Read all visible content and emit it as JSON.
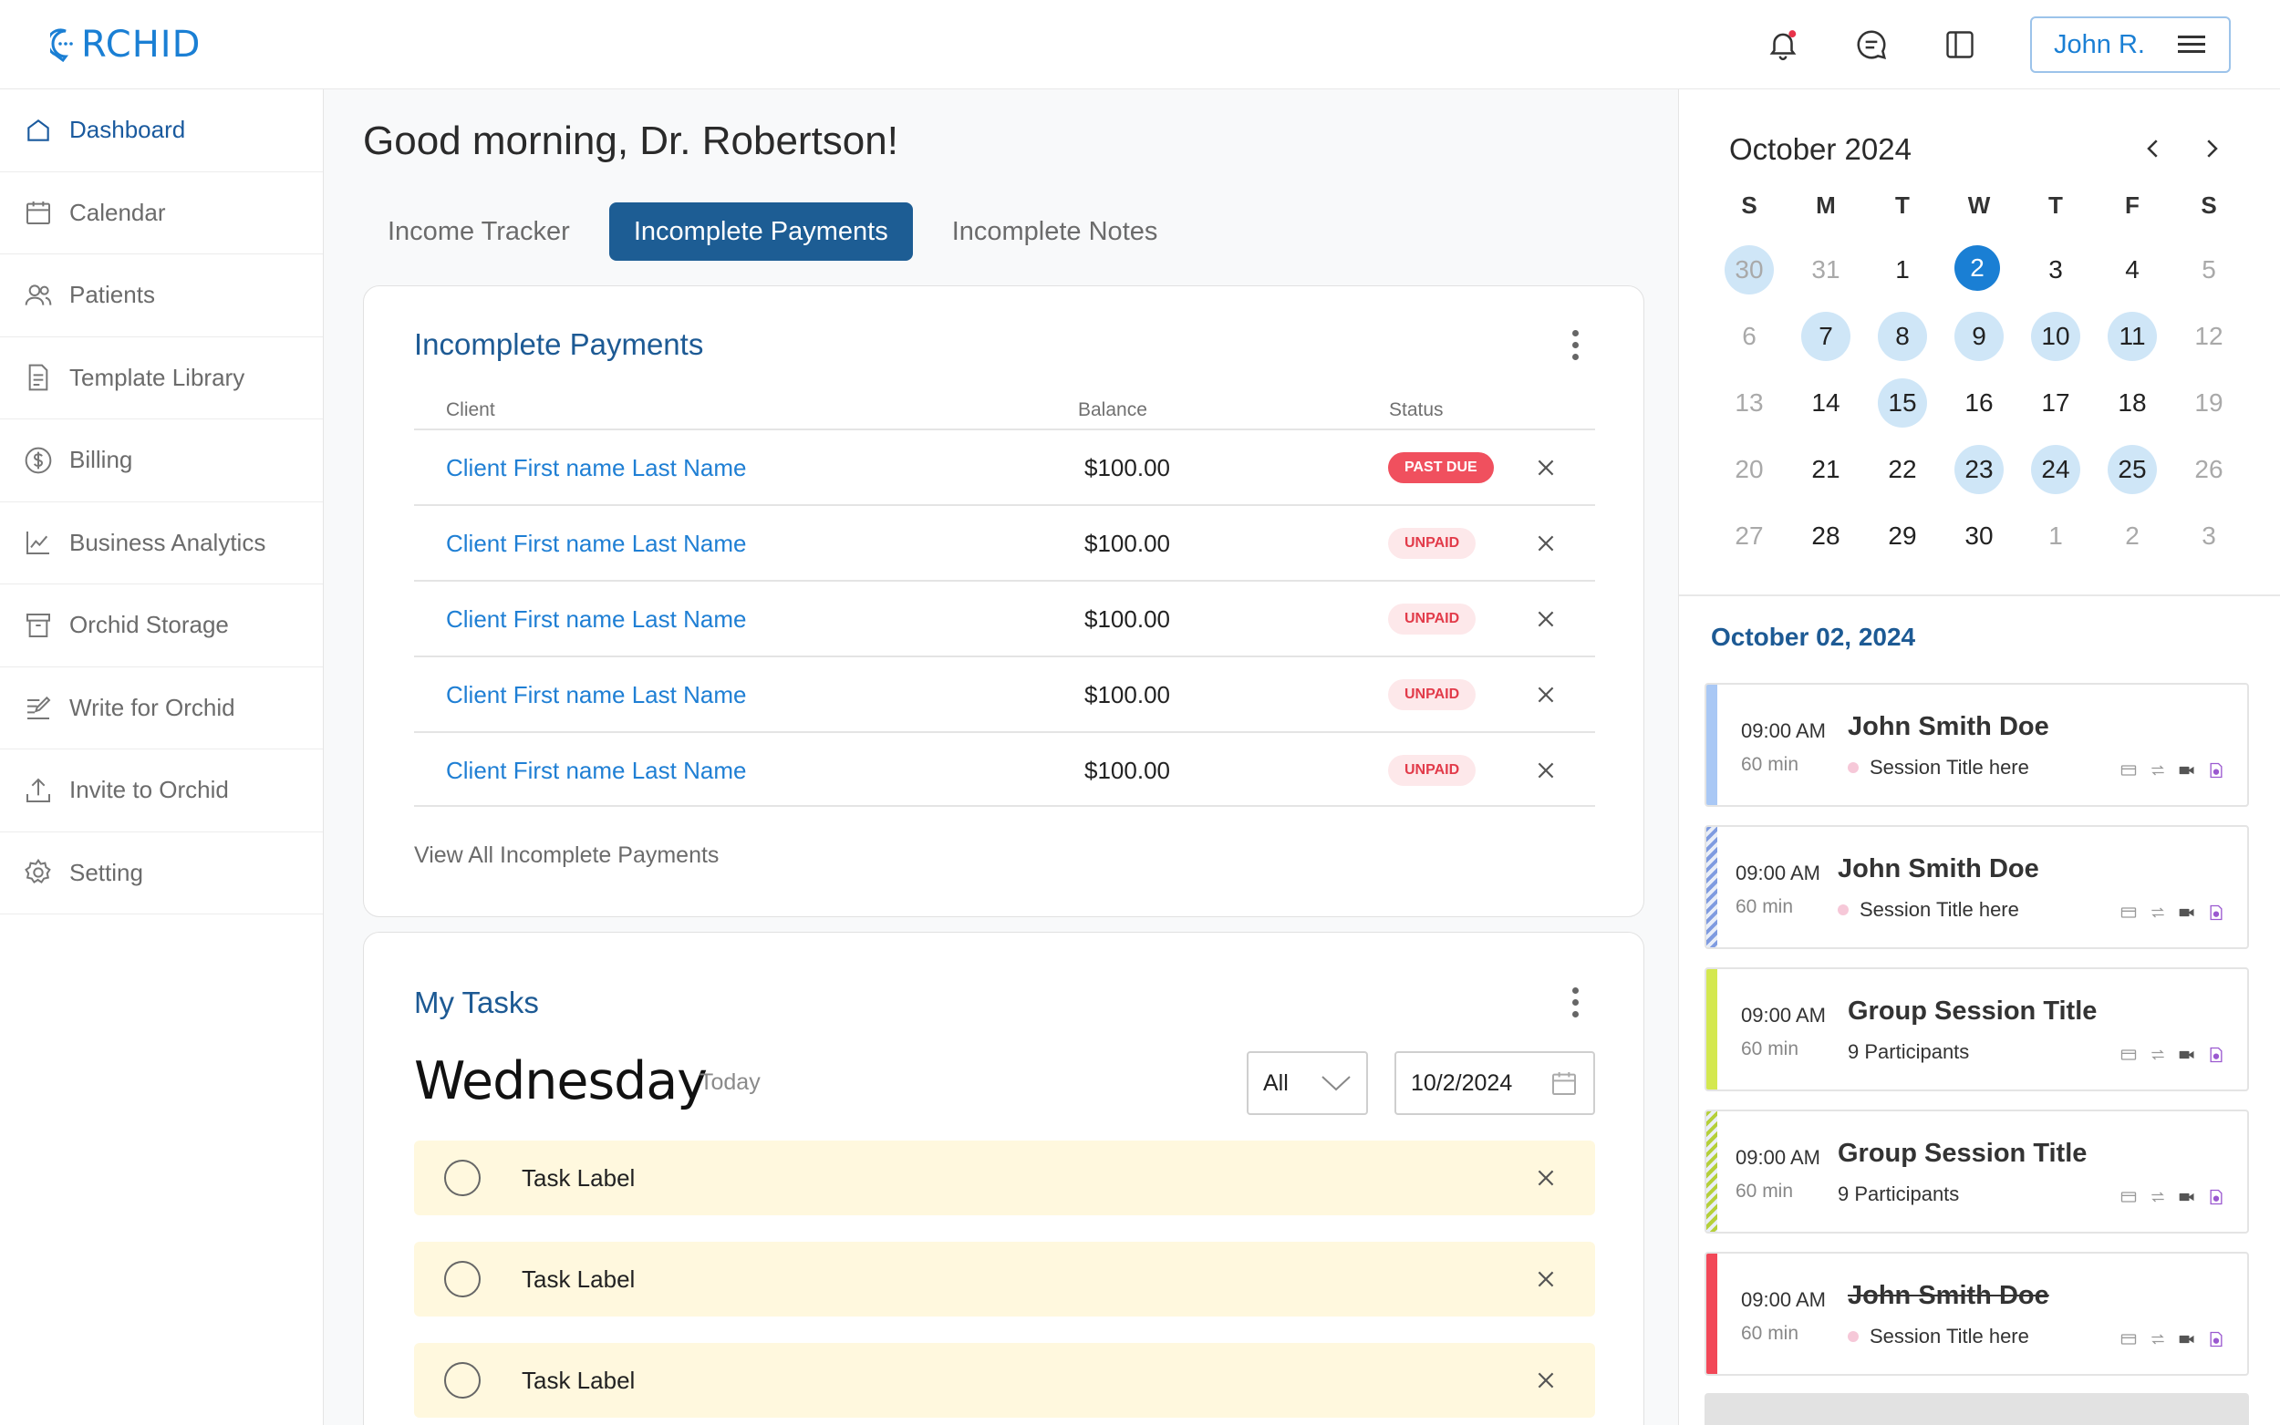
{
  "app": {
    "logo_text": "RCHID"
  },
  "header": {
    "user_label": "John R."
  },
  "sidebar": {
    "items": [
      {
        "label": "Dashboard",
        "icon": "home-icon"
      },
      {
        "label": "Calendar",
        "icon": "calendar-icon"
      },
      {
        "label": "Patients",
        "icon": "users-icon"
      },
      {
        "label": "Template Library",
        "icon": "document-icon"
      },
      {
        "label": "Billing",
        "icon": "dollar-icon"
      },
      {
        "label": "Business Analytics",
        "icon": "chart-icon"
      },
      {
        "label": "Orchid Storage",
        "icon": "archive-icon"
      },
      {
        "label": "Write for Orchid",
        "icon": "edit-icon"
      },
      {
        "label": "Invite to Orchid",
        "icon": "upload-icon"
      },
      {
        "label": "Setting",
        "icon": "gear-icon"
      }
    ]
  },
  "main": {
    "greeting": "Good morning, Dr. Robertson!",
    "tabs": [
      {
        "label": "Income Tracker"
      },
      {
        "label": "Incomplete Payments"
      },
      {
        "label": "Incomplete Notes"
      }
    ],
    "payments": {
      "title": "Incomplete Payments",
      "columns": [
        "Client",
        "Balance",
        "Status"
      ],
      "rows": [
        {
          "client": "Client First name Last Name",
          "balance": "$100.00",
          "status": "PAST DUE"
        },
        {
          "client": "Client First name Last Name",
          "balance": "$100.00",
          "status": "UNPAID"
        },
        {
          "client": "Client First name Last Name",
          "balance": "$100.00",
          "status": "UNPAID"
        },
        {
          "client": "Client First name Last Name",
          "balance": "$100.00",
          "status": "UNPAID"
        },
        {
          "client": "Client First name Last Name",
          "balance": "$100.00",
          "status": "UNPAID"
        }
      ],
      "view_all": "View All Incomplete Payments"
    },
    "tasks": {
      "title": "My Tasks",
      "weekday": "Wednesday",
      "today": "Today",
      "filter_value": "All",
      "date_value": "10/2/2024",
      "items": [
        {
          "label": "Task Label"
        },
        {
          "label": "Task Label"
        },
        {
          "label": "Task Label"
        }
      ]
    }
  },
  "calendar": {
    "month_label": "October 2024",
    "weekdays": [
      "S",
      "M",
      "T",
      "W",
      "T",
      "F",
      "S"
    ],
    "weeks": [
      [
        "30",
        "31",
        "1",
        "2",
        "3",
        "4",
        "5"
      ],
      [
        "6",
        "7",
        "8",
        "9",
        "10",
        "11",
        "12"
      ],
      [
        "13",
        "14",
        "15",
        "16",
        "17",
        "18",
        "19"
      ],
      [
        "20",
        "21",
        "22",
        "23",
        "24",
        "25",
        "26"
      ],
      [
        "27",
        "28",
        "29",
        "30",
        "1",
        "2",
        "3"
      ]
    ],
    "selected_date": "October 02, 2024"
  },
  "appointments": [
    {
      "time": "09:00 AM",
      "duration": "60 min",
      "name": "John Smith Doe",
      "sub": "Session Title here",
      "color": "#a9c8f5",
      "style": "solid",
      "strike": false,
      "dot": true
    },
    {
      "time": "09:00 AM",
      "duration": "60 min",
      "name": "John Smith Doe",
      "sub": "Session Title here",
      "color": "#7f9be0",
      "style": "striped",
      "strike": false,
      "dot": true
    },
    {
      "time": "09:00 AM",
      "duration": "60 min",
      "name": "Group Session Title",
      "sub": "9 Participants",
      "color": "#d4e84f",
      "style": "solid",
      "strike": false,
      "dot": false
    },
    {
      "time": "09:00 AM",
      "duration": "60 min",
      "name": "Group Session Title",
      "sub": "9 Participants",
      "color": "#b5cf3a",
      "style": "striped",
      "strike": false,
      "dot": false
    },
    {
      "time": "09:00 AM",
      "duration": "60 min",
      "name": "John Smith Doe",
      "sub": "Session Title here",
      "color": "#f24858",
      "style": "solid",
      "strike": true,
      "dot": true
    }
  ]
}
